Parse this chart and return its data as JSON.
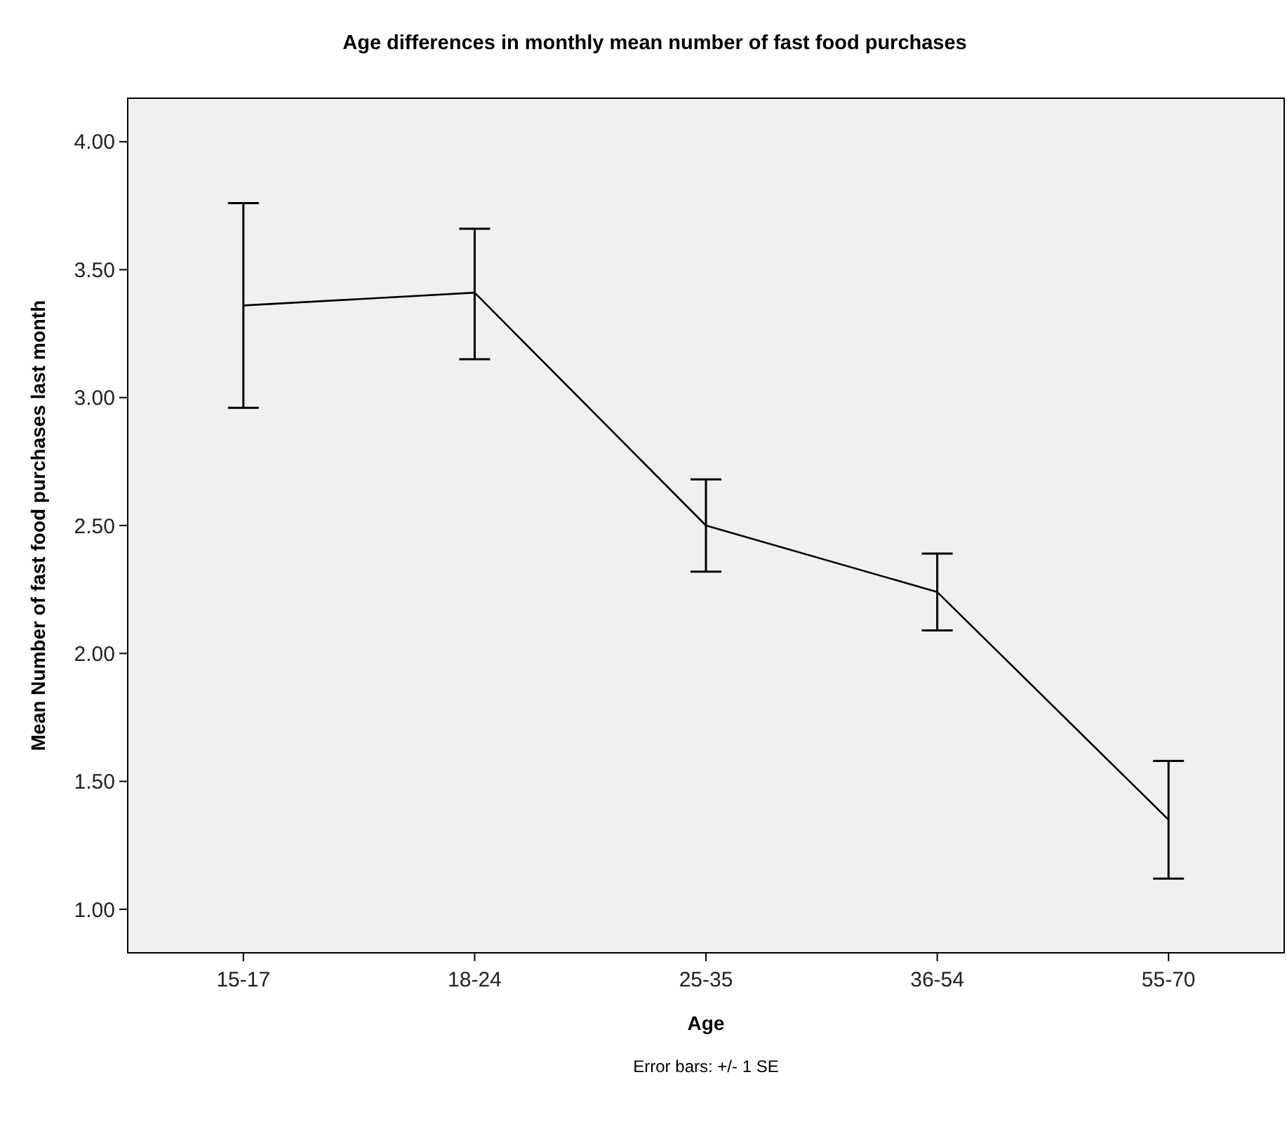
{
  "chart_data": {
    "type": "line",
    "title": "Age differences in monthly mean number of fast food purchases",
    "xlabel": "Age",
    "ylabel": "Mean Number of fast food purchases last month",
    "categories": [
      "15-17",
      "18-24",
      "25-35",
      "36-54",
      "55-70"
    ],
    "series": [
      {
        "color": "#000000",
        "values": [
          3.36,
          3.41,
          2.5,
          2.24,
          1.35
        ],
        "errors": [
          [
            2.96,
            3.76
          ],
          [
            3.15,
            3.66
          ],
          [
            2.32,
            2.68
          ],
          [
            2.09,
            2.39
          ],
          [
            1.12,
            1.58
          ]
        ]
      }
    ],
    "ylim": [
      0.83,
      4.17
    ],
    "yticks": [
      {
        "value": 1,
        "label": "1.00"
      },
      {
        "value": 1.5,
        "label": "1.50"
      },
      {
        "value": 2,
        "label": "2.00"
      },
      {
        "value": 2.5,
        "label": "2.50"
      },
      {
        "value": 3,
        "label": "3.00"
      },
      {
        "value": 3.5,
        "label": "3.50"
      },
      {
        "value": 4,
        "label": "4.00"
      }
    ],
    "grid": false,
    "marker": "none",
    "line_style": "solid",
    "annotations": [
      "Error bars: +/- 1 SE"
    ]
  }
}
